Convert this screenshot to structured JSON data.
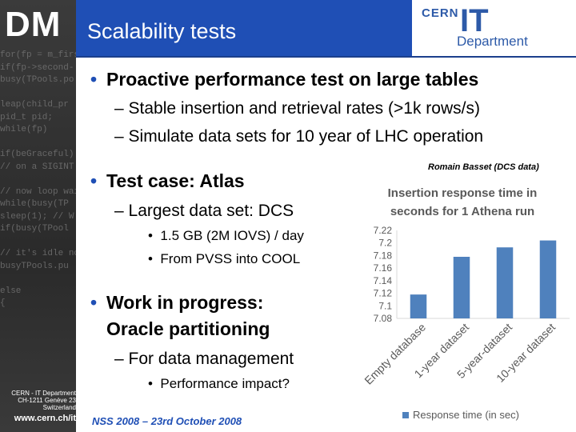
{
  "logo": "DM",
  "header": {
    "title": "Scalability tests",
    "cern": "CERN",
    "it": "IT",
    "department": "Department"
  },
  "sidebar_code": [
    "for(fp = m_first",
    "if(fp->second-",
    "busy(TPools.po",
    "",
    "leap(child_pr",
    "pid_t pid;",
    "while(fp)",
    "",
    "if(beGraceful)",
    "// on a SIGINT",
    "",
    "// now loop wait",
    "while(busy(TP",
    "sleep(1); // W",
    "if(busy(TPool",
    "",
    "// it's idle no",
    "busyTPools.pu",
    "",
    "else",
    "{",
    ""
  ],
  "bullets": {
    "proactive": "Proactive performance test on large tables",
    "stable": "Stable insertion and retrieval rates (>1k rows/s)",
    "simulate": "Simulate data sets for 10 year of LHC operation",
    "testcase": "Test case: Atlas",
    "largest": "Largest data set: DCS",
    "gb": "1.5 GB (2M IOVS) / day",
    "pvss": "From PVSS into COOL",
    "wip_line1": "Work in progress:",
    "wip_line2": "Oracle partitioning",
    "fordata": "For data management",
    "perf": "Performance impact?"
  },
  "credit": "Romain Basset (DCS data)",
  "footer": {
    "cern_line1": "CERN - IT Department",
    "cern_line2": "CH-1211 Genève 23",
    "cern_line3": "Switzerland",
    "url": "www.cern.ch/it",
    "nss": "NSS 2008 – 23rd October 2008"
  },
  "chart_data": {
    "type": "bar",
    "title_line1": "Insertion response time in",
    "title_line2": "seconds for 1 Athena run",
    "categories": [
      "Empty database",
      "1-year dataset",
      "5-year-dataset",
      "10-year dataset"
    ],
    "values": [
      7.118,
      7.178,
      7.193,
      7.204
    ],
    "ylim": [
      7.08,
      7.22
    ],
    "yticks": [
      "7.22",
      "7.2",
      "7.18",
      "7.16",
      "7.14",
      "7.12",
      "7.1",
      "7.08"
    ],
    "legend": "Response time (in sec)",
    "color": "#4f81bd",
    "grid": false
  }
}
